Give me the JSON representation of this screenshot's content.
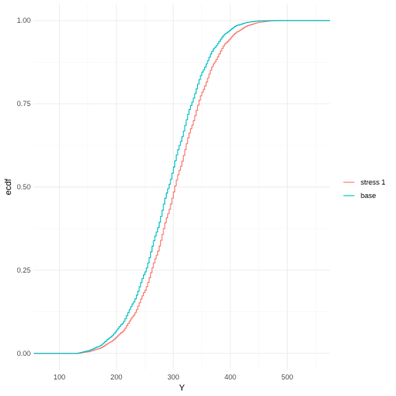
{
  "chart_data": {
    "type": "line",
    "title": "",
    "xlabel": "Y",
    "ylabel": "ecdf",
    "xlim": [
      55,
      575
    ],
    "ylim": [
      -0.05,
      1.05
    ],
    "x_ticks": [
      100,
      200,
      300,
      400,
      500
    ],
    "y_ticks": [
      0.0,
      0.25,
      0.5,
      0.75,
      1.0
    ],
    "y_tick_labels": [
      "0.00",
      "0.25",
      "0.50",
      "0.75",
      "1.00"
    ],
    "grid": true,
    "legend_position": "right",
    "series": [
      {
        "name": "stress 1",
        "color": "#F8766D",
        "x": [
          55,
          130,
          150,
          170,
          190,
          210,
          230,
          250,
          270,
          290,
          310,
          330,
          350,
          370,
          390,
          410,
          430,
          450,
          470,
          490,
          575
        ],
        "y": [
          0.0,
          0.0,
          0.005,
          0.015,
          0.035,
          0.065,
          0.115,
          0.19,
          0.295,
          0.42,
          0.55,
          0.675,
          0.785,
          0.87,
          0.93,
          0.965,
          0.985,
          0.995,
          0.999,
          1.0,
          1.0
        ]
      },
      {
        "name": "base",
        "color": "#00BFC4",
        "x": [
          55,
          130,
          150,
          170,
          190,
          210,
          230,
          250,
          270,
          290,
          310,
          330,
          350,
          370,
          390,
          410,
          430,
          450,
          470,
          490,
          575
        ],
        "y": [
          0.0,
          0.0,
          0.008,
          0.022,
          0.05,
          0.09,
          0.155,
          0.245,
          0.365,
          0.495,
          0.625,
          0.745,
          0.845,
          0.915,
          0.96,
          0.985,
          0.995,
          0.999,
          1.0,
          1.0,
          1.0
        ]
      }
    ]
  }
}
